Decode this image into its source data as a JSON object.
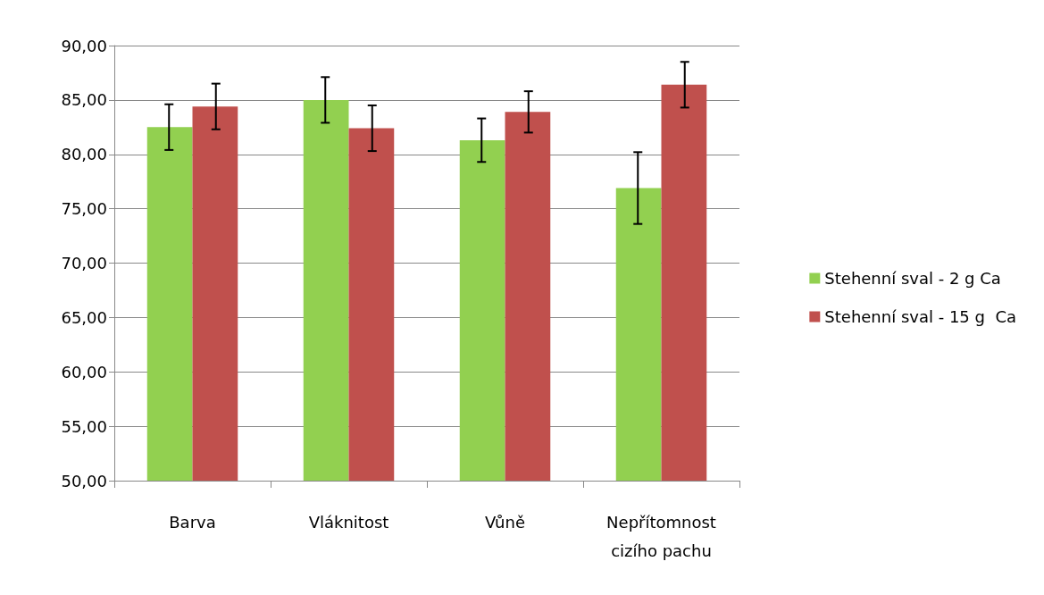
{
  "chart_data": {
    "type": "bar",
    "categories": [
      "Barva",
      "Vláknitost",
      "Vůně",
      "Nepřítomnost\ncizího pachu"
    ],
    "series": [
      {
        "name": "Stehenní sval - 2 g Ca",
        "color": "#92d050",
        "values": [
          82.5,
          85.0,
          81.3,
          76.9
        ],
        "errors": [
          2.1,
          2.1,
          2.0,
          3.3
        ]
      },
      {
        "name": "Stehenní sval - 15 g  Ca",
        "color": "#c0504d",
        "values": [
          84.4,
          82.4,
          83.9,
          86.4
        ],
        "errors": [
          2.1,
          2.1,
          1.9,
          2.1
        ]
      }
    ],
    "ylim": [
      50,
      90
    ],
    "yticks": [
      {
        "value": 50,
        "label": "50,00"
      },
      {
        "value": 55,
        "label": "55,00"
      },
      {
        "value": 60,
        "label": "60,00"
      },
      {
        "value": 65,
        "label": "65,00"
      },
      {
        "value": 70,
        "label": "70,00"
      },
      {
        "value": 75,
        "label": "75,00"
      },
      {
        "value": 80,
        "label": "80,00"
      },
      {
        "value": 85,
        "label": "85,00"
      },
      {
        "value": 90,
        "label": "90,00"
      }
    ],
    "grid": "y",
    "legend": "right"
  }
}
